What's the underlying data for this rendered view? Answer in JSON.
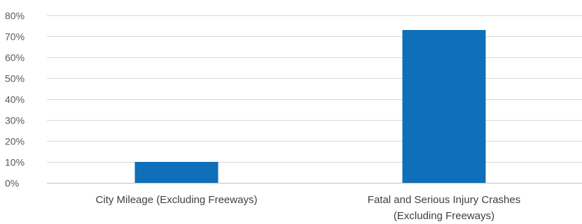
{
  "chart_data": {
    "type": "bar",
    "categories": [
      [
        "City Mileage (Excluding Freeways)"
      ],
      [
        "Fatal and Serious Injury Crashes",
        "(Excluding Freeways)"
      ]
    ],
    "values": [
      0.1,
      0.73
    ],
    "ylim": [
      0,
      0.8
    ],
    "yticks": [
      "0%",
      "10%",
      "20%",
      "30%",
      "40%",
      "50%",
      "60%",
      "70%",
      "80%"
    ],
    "grid": true,
    "bar_color": "#0f6fb8",
    "title": "",
    "xlabel": "",
    "ylabel": ""
  }
}
